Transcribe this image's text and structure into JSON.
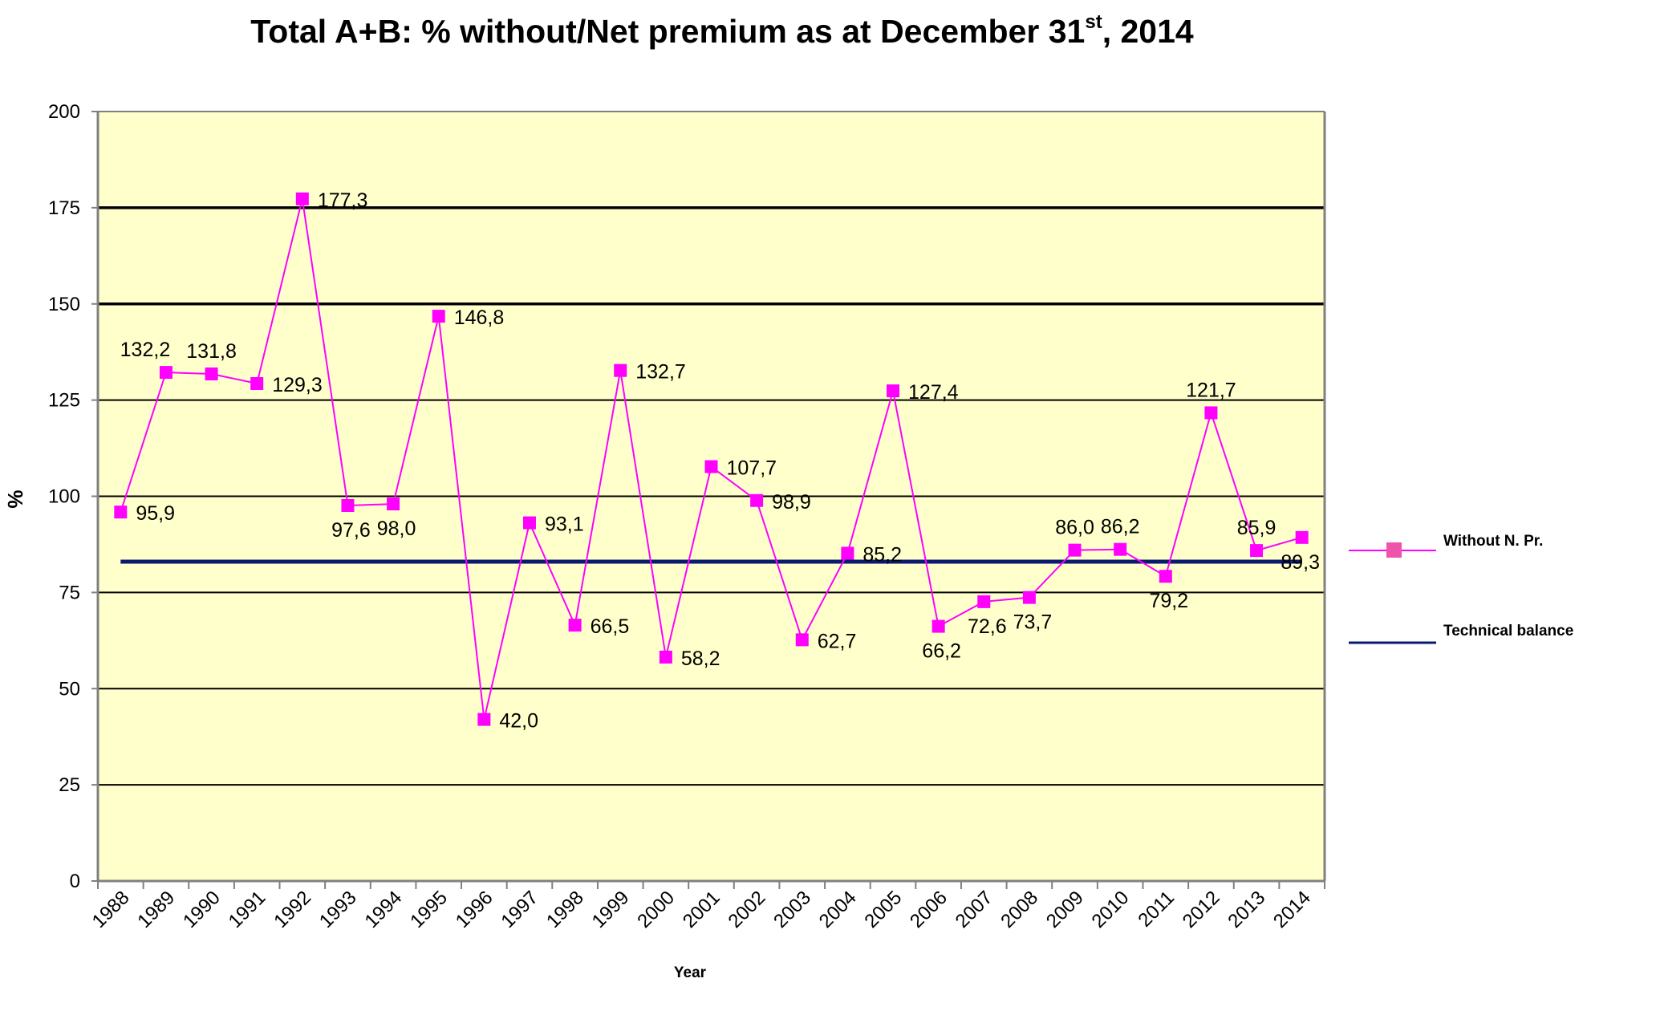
{
  "chart_data": {
    "type": "line",
    "title": "Total A+B: % without/Net premium as at December 31",
    "title_sup": "st",
    "title_tail": ", 2014",
    "xlabel": "Year",
    "ylabel": "%",
    "ylim": [
      0,
      200
    ],
    "yticks": [
      "0",
      "25",
      "50",
      "75",
      "100",
      "125",
      "150",
      "175",
      "200"
    ],
    "categories": [
      "1988",
      "1989",
      "1990",
      "1991",
      "1992",
      "1993",
      "1994",
      "1995",
      "1996",
      "1997",
      "1998",
      "1999",
      "2000",
      "2001",
      "2002",
      "2003",
      "2004",
      "2005",
      "2006",
      "2007",
      "2008",
      "2009",
      "2010",
      "2011",
      "2012",
      "2013",
      "2014"
    ],
    "series": [
      {
        "name": "Without N. Pr.",
        "color": "#ff00ff",
        "values": [
          95.9,
          132.2,
          131.8,
          129.3,
          177.3,
          97.6,
          98.0,
          146.8,
          42.0,
          93.1,
          66.5,
          132.7,
          58.2,
          107.7,
          98.9,
          62.7,
          85.2,
          127.4,
          66.2,
          72.6,
          73.7,
          86.0,
          86.2,
          79.2,
          121.7,
          85.9,
          89.3
        ],
        "labels": [
          "95,9",
          "132,2",
          "131,8",
          "129,3",
          "177,3",
          "97,6",
          "98,0",
          "146,8",
          "42,0",
          "93,1",
          "66,5",
          "132,7",
          "58,2",
          "107,7",
          "98,9",
          "62,7",
          "85,2",
          "127,4",
          "66,2",
          "72,6",
          "73,7",
          "86,0",
          "86,2",
          "79,2",
          "121,7",
          "85,9",
          "89,3"
        ]
      },
      {
        "name": "Technical balance",
        "color": "#0a1a6e",
        "values": [
          83,
          83,
          83,
          83,
          83,
          83,
          83,
          83,
          83,
          83,
          83,
          83,
          83,
          83,
          83,
          83,
          83,
          83,
          83,
          83,
          83,
          83,
          83,
          83,
          83,
          83,
          83
        ]
      }
    ],
    "plot_background": "#ffffcc",
    "grid": true,
    "legend_position": "right"
  }
}
